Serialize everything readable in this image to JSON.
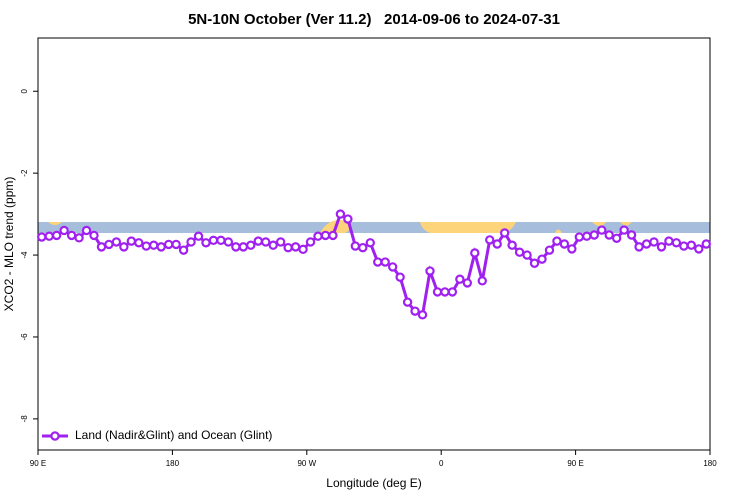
{
  "chart_data": {
    "type": "line",
    "title": "5N-10N October (Ver 11.2)   2014-09-06 to 2024-07-31",
    "xlabel": "Longitude (deg E)",
    "ylabel": "XCO2 - MLO trend (ppm)",
    "x": [
      92.5,
      97.5,
      102.5,
      107.5,
      112.5,
      117.5,
      122.5,
      127.5,
      132.5,
      137.5,
      142.5,
      147.5,
      152.5,
      157.5,
      162.5,
      167.5,
      172.5,
      177.5,
      182.5,
      187.5,
      192.5,
      197.5,
      202.5,
      207.5,
      212.5,
      217.5,
      222.5,
      227.5,
      232.5,
      237.5,
      242.5,
      247.5,
      252.5,
      257.5,
      262.5,
      267.5,
      272.5,
      277.5,
      282.5,
      287.5,
      292.5,
      297.5,
      302.5,
      307.5,
      312.5,
      317.5,
      322.5,
      327.5,
      332.5,
      337.5,
      342.5,
      347.5,
      352.5,
      357.5,
      362.5,
      367.5,
      372.5,
      377.5,
      382.5,
      387.5,
      392.5,
      397.5,
      402.5,
      407.5,
      412.5,
      417.5,
      422.5,
      427.5,
      432.5,
      437.5,
      442.5,
      447.5,
      452.5,
      457.5,
      462.5,
      467.5,
      472.5,
      477.5,
      482.5,
      487.5,
      492.5,
      497.5,
      502.5,
      507.5,
      512.5,
      517.5,
      522.5,
      527.5,
      532.5,
      537.5
    ],
    "series": [
      {
        "name": "Land (Nadir&Glint) and Ocean (Glint)",
        "color": "#a020f0",
        "values": [
          -3.56,
          -3.54,
          -3.52,
          -3.4,
          -3.52,
          -3.58,
          -3.4,
          -3.52,
          -3.8,
          -3.74,
          -3.68,
          -3.8,
          -3.66,
          -3.7,
          -3.78,
          -3.76,
          -3.8,
          -3.74,
          -3.74,
          -3.88,
          -3.68,
          -3.54,
          -3.7,
          -3.64,
          -3.64,
          -3.68,
          -3.8,
          -3.8,
          -3.76,
          -3.66,
          -3.68,
          -3.76,
          -3.68,
          -3.82,
          -3.8,
          -3.86,
          -3.68,
          -3.54,
          -3.52,
          -3.52,
          -3.0,
          -3.12,
          -3.78,
          -3.82,
          -3.7,
          -4.17,
          -4.17,
          -4.29,
          -4.54,
          -5.15,
          -5.37,
          -5.46,
          -4.39,
          -4.9,
          -4.9,
          -4.9,
          -4.59,
          -4.68,
          -3.95,
          -4.63,
          -3.63,
          -3.73,
          -3.46,
          -3.76,
          -3.93,
          -4.0,
          -4.2,
          -4.1,
          -3.88,
          -3.66,
          -3.73,
          -3.85,
          -3.56,
          -3.54,
          -3.51,
          -3.39,
          -3.51,
          -3.59,
          -3.39,
          -3.51,
          -3.8,
          -3.73,
          -3.68,
          -3.8,
          -3.66,
          -3.7,
          -3.78,
          -3.76,
          -3.85,
          -3.73
        ]
      }
    ],
    "xlim": [
      90,
      540
    ],
    "ylim": [
      -8.76,
      1.3
    ],
    "xticks": [
      {
        "value": 90,
        "label": "90 E"
      },
      180,
      {
        "value": 270,
        "label": "90 W"
      },
      {
        "value": 360,
        "label": "0"
      },
      {
        "value": 450,
        "label": "90 E"
      },
      {
        "value": 540,
        "label": "180"
      }
    ],
    "yticks": [
      0,
      -2,
      -4,
      -6,
      -8
    ],
    "legend": "lower left"
  }
}
